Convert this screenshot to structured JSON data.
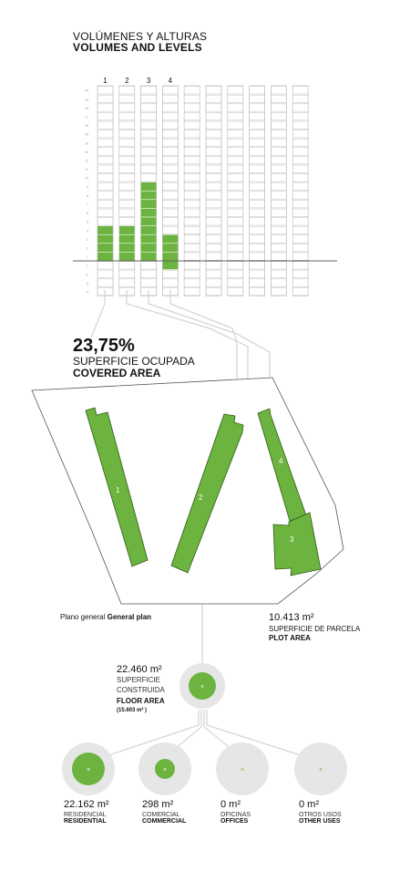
{
  "header": {
    "title_es": "VOLÚMENES Y ALTURAS",
    "title_en": "VOLUMES AND LEVELS"
  },
  "volumes": {
    "column_labels": [
      "1",
      "2",
      "3",
      "4"
    ],
    "axis_levels": [
      "20",
      "19",
      "18",
      "17",
      "16",
      "15",
      "14",
      "13",
      "12",
      "11",
      "10",
      "9",
      "8",
      "7",
      "6",
      "5",
      "4",
      "3",
      "2",
      "1",
      "-1",
      "-2",
      "-3",
      "-4"
    ],
    "levels_above": [
      4,
      4,
      9,
      3
    ],
    "levels_below": [
      0,
      0,
      0,
      1
    ]
  },
  "coverage": {
    "value": "23,75%",
    "label_es": "SUPERFICIE OCUPADA",
    "label_en": "COVERED AREA"
  },
  "plan": {
    "label_es": "Plano general",
    "label_en": "General plan",
    "buildings": [
      "1",
      "2",
      "3",
      "4"
    ]
  },
  "plot": {
    "value": "10.413 m²",
    "label_es": "SUPERFICIE DE PARCELA",
    "label_en": "PLOT AREA"
  },
  "floor_area": {
    "value": "22.460 m²",
    "label_es_1": "SUPERFICIE",
    "label_es_2": "CONSTRUIDA",
    "label_en": "FLOOR AREA",
    "note": "(15.603 m² )"
  },
  "uses": [
    {
      "value": "22.162 m²",
      "label_es": "RESIDENCIAL",
      "label_en": "RESIDENTIAL"
    },
    {
      "value": "298 m²",
      "label_es": "COMERCIAL",
      "label_en": "COMMERCIAL"
    },
    {
      "value": "0 m²",
      "label_es": "OFICINAS",
      "label_en": "OFFICES"
    },
    {
      "value": "0 m²",
      "label_es": "OTROS USOS",
      "label_en": "OTHER USES"
    }
  ],
  "colors": {
    "green": "#6cb33f",
    "green_dark": "#3e7a1f",
    "light_gray": "#e6e6e6",
    "line_gray": "#cfcfcf"
  }
}
